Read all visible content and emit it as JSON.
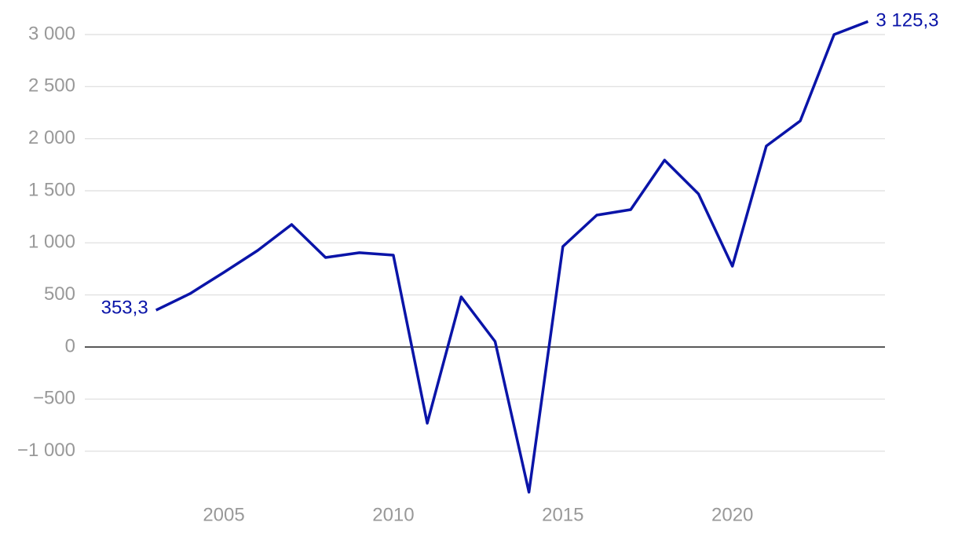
{
  "chart_data": {
    "type": "line",
    "x": [
      2003,
      2004,
      2005,
      2006,
      2007,
      2008,
      2009,
      2010,
      2011,
      2012,
      2013,
      2014,
      2015,
      2016,
      2017,
      2018,
      2019,
      2020,
      2021,
      2022,
      2023,
      2024
    ],
    "values": [
      353.3,
      512,
      716,
      927,
      1176,
      859,
      905,
      882,
      -731,
      482,
      53,
      -1394,
      965,
      1266,
      1319,
      1794,
      1470,
      776,
      1930,
      2171,
      3000,
      3125.3
    ],
    "value_labels": [
      "353,3",
      null,
      null,
      null,
      null,
      null,
      null,
      null,
      null,
      null,
      null,
      null,
      null,
      null,
      null,
      null,
      null,
      null,
      null,
      null,
      null,
      "3 125,3"
    ],
    "color": "#0a14a8",
    "xlim": [
      2000.9,
      2024.5
    ],
    "xticks": [
      2005,
      2010,
      2015,
      2020
    ],
    "ylim": [
      -1500,
      3200
    ],
    "yticks": [
      {
        "value": -1000,
        "label": "−1 000"
      },
      {
        "value": -500,
        "label": "−500"
      },
      0,
      500,
      {
        "value": 1000,
        "label": "1 000"
      },
      {
        "value": 1500,
        "label": "1 500"
      },
      {
        "value": 2000,
        "label": "2 000"
      },
      {
        "value": 2500,
        "label": "2 500"
      },
      {
        "value": 3000,
        "label": "3 000"
      }
    ],
    "grid": true
  }
}
